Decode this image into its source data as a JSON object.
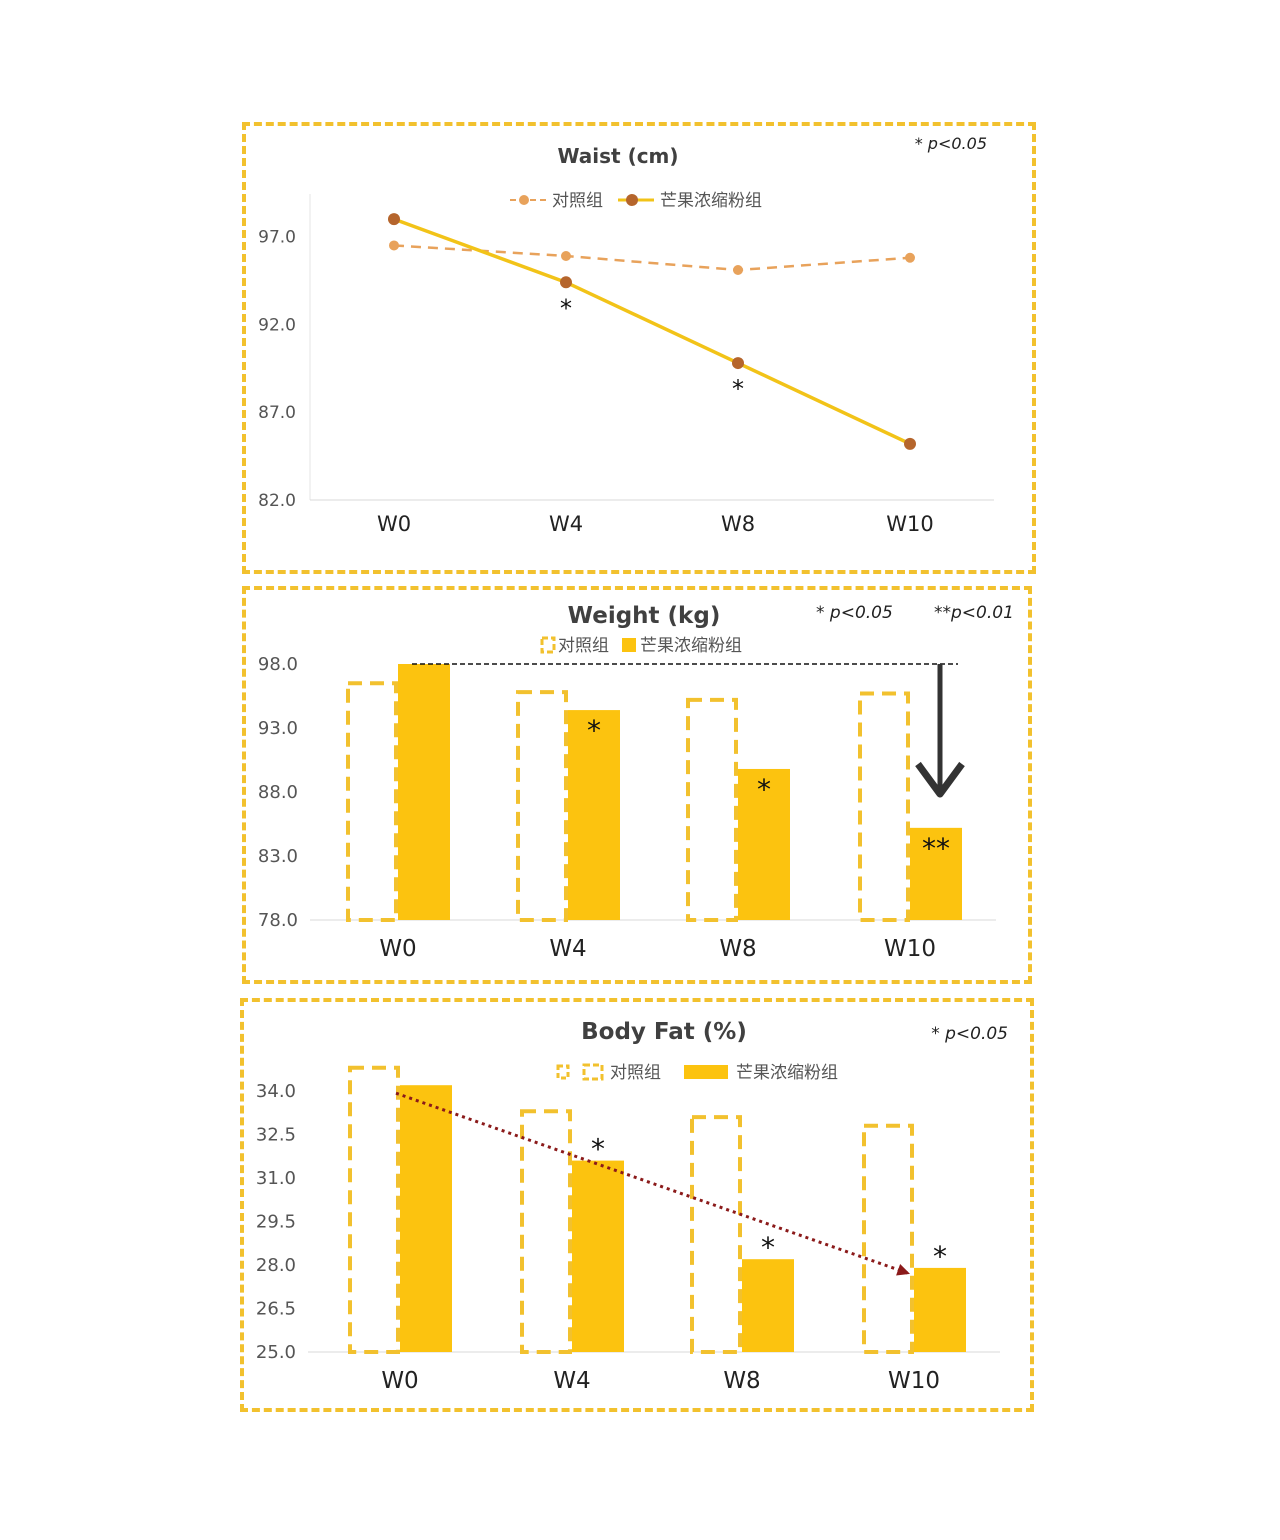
{
  "colors": {
    "control_line": "#e8a25b",
    "treatment_line": "#f2c318",
    "marker": "#b5652c",
    "bar_fill": "#fcc30f",
    "bar_outline": "#f2c12e",
    "trend_arrow": "#8b1a1a",
    "drop_arrow": "#333333"
  },
  "chart_data": [
    {
      "type": "line",
      "title": "Waist (cm)",
      "note": "* p<0.05",
      "categories": [
        "W0",
        "W4",
        "W8",
        "W10"
      ],
      "yticks": [
        "97.0",
        "92.0",
        "87.0",
        "82.0"
      ],
      "ylim": [
        82,
        100
      ],
      "grid": false,
      "legend_position": "top",
      "series": [
        {
          "name": "对照组",
          "values": [
            96.5,
            95.9,
            95.1,
            95.8
          ]
        },
        {
          "name": "芒果浓缩粉组",
          "values": [
            98.0,
            94.4,
            89.8,
            85.2
          ],
          "significance": [
            "",
            "*",
            "*",
            ""
          ]
        }
      ]
    },
    {
      "type": "bar",
      "title": "Weight (kg)",
      "notes": [
        "* p<0.05",
        "**p<0.01"
      ],
      "categories": [
        "W0",
        "W4",
        "W8",
        "W10"
      ],
      "yticks": [
        "98.0",
        "93.0",
        "88.0",
        "83.0",
        "78.0"
      ],
      "ylim": [
        78,
        98
      ],
      "grid": false,
      "legend_position": "top",
      "series": [
        {
          "name": "对照组",
          "values": [
            96.5,
            95.8,
            95.2,
            95.7
          ]
        },
        {
          "name": "芒果浓缩粉组",
          "values": [
            98.0,
            94.4,
            89.8,
            85.2
          ],
          "significance": [
            "",
            "*",
            "*",
            "**"
          ]
        }
      ]
    },
    {
      "type": "bar",
      "title": "Body Fat (%)",
      "note": "* p<0.05",
      "categories": [
        "W0",
        "W4",
        "W8",
        "W10"
      ],
      "yticks": [
        "34.0",
        "32.5",
        "31.0",
        "29.5",
        "28.0",
        "26.5",
        "25.0"
      ],
      "ylim": [
        25,
        35
      ],
      "grid": false,
      "legend_position": "top",
      "series": [
        {
          "name": "对照组",
          "values": [
            34.8,
            33.3,
            33.1,
            32.8
          ]
        },
        {
          "name": "芒果浓缩粉组",
          "values": [
            34.2,
            31.6,
            28.2,
            27.9
          ],
          "significance": [
            "",
            "*",
            "*",
            "*"
          ]
        }
      ]
    }
  ]
}
